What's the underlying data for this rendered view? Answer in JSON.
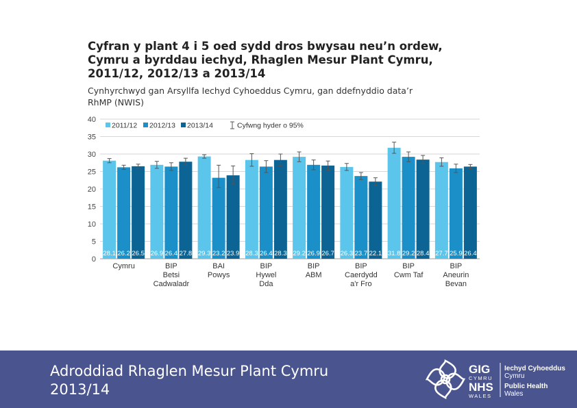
{
  "title": "Cyfran y plant 4 i 5 oed sydd dros bwysau neu’n ordew,\nCymru a byrddau iechyd, Rhaglen Mesur Plant Cymru,\n2011/12, 2012/13 a 2013/14",
  "subtitle": "Cynhyrchwyd gan Arsyllfa Iechyd Cyhoeddus Cymru, gan ddefnyddio data’r\nRhMP (NWIS)",
  "footer": {
    "title": "Adroddiad Rhaglen Mesur Plant Cymru\n2013/14"
  },
  "logo": {
    "gig": "GIG",
    "cymru": "CYMRU",
    "nhs": "NHS",
    "wales": "WALES",
    "org_welsh_1": "Iechyd Cyhoeddus",
    "org_welsh_2": "Cymru",
    "org_english_1": "Public Health",
    "org_english_2": "Wales"
  },
  "chart_data": {
    "type": "bar",
    "categories": [
      [
        "Cymru"
      ],
      [
        "BIP",
        "Betsi",
        "Cadwaladr"
      ],
      [
        "BAI",
        "Powys"
      ],
      [
        "BIP",
        "Hywel",
        "Dda"
      ],
      [
        "BIP",
        "ABM"
      ],
      [
        "BIP",
        "Caerdydd",
        "a'r Fro"
      ],
      [
        "BIP",
        "Cwm Taf"
      ],
      [
        "BIP",
        "Aneurin",
        "Bevan"
      ]
    ],
    "series": [
      {
        "name": "2011/12",
        "color": "#5bc5ec",
        "values": [
          28.1,
          26.9,
          29.3,
          28.3,
          29.2,
          26.3,
          31.8,
          27.7
        ]
      },
      {
        "name": "2012/13",
        "color": "#1a8fc8",
        "values": [
          26.2,
          26.4,
          23.2,
          26.4,
          26.9,
          23.7,
          29.2,
          25.9
        ]
      },
      {
        "name": "2013/14",
        "color": "#0b6494",
        "values": [
          26.5,
          27.8,
          23.9,
          28.3,
          26.7,
          22.1,
          28.4,
          26.4
        ]
      }
    ],
    "ci": [
      [
        [
          27.5,
          28.7
        ],
        [
          25.6,
          26.8
        ],
        [
          25.9,
          27.1
        ]
      ],
      [
        [
          25.9,
          27.9
        ],
        [
          25.3,
          27.5
        ],
        [
          26.8,
          28.8
        ]
      ],
      [
        [
          28.8,
          29.8
        ],
        [
          20.4,
          26.8
        ],
        [
          21.4,
          26.6
        ]
      ],
      [
        [
          26.5,
          30.1
        ],
        [
          24.7,
          28.1
        ],
        [
          26.6,
          30.0
        ]
      ],
      [
        [
          27.8,
          30.6
        ],
        [
          25.5,
          28.3
        ],
        [
          25.4,
          28.0
        ]
      ],
      [
        [
          25.3,
          27.3
        ],
        [
          22.7,
          24.7
        ],
        [
          21.0,
          23.2
        ]
      ],
      [
        [
          30.2,
          33.4
        ],
        [
          27.8,
          30.6
        ],
        [
          27.2,
          29.6
        ]
      ],
      [
        [
          26.5,
          28.9
        ],
        [
          24.7,
          27.1
        ],
        [
          25.8,
          27.0
        ]
      ]
    ],
    "ci_legend": "Cyfwng hyder o 95%",
    "ylim": [
      0,
      40
    ],
    "yticks": [
      0,
      5,
      10,
      15,
      20,
      25,
      30,
      35,
      40
    ],
    "grid": true,
    "legend": "top-left",
    "title": "",
    "xlabel": "",
    "ylabel": ""
  }
}
